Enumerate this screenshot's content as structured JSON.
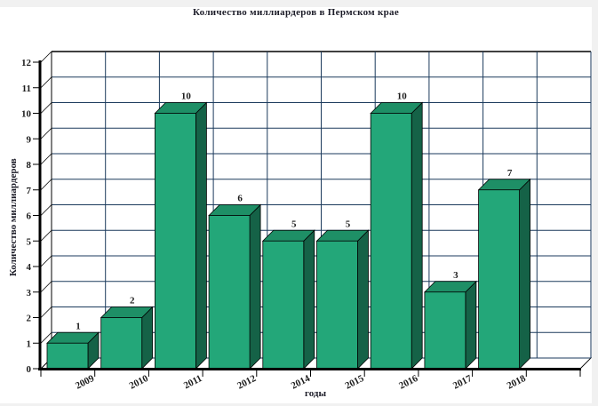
{
  "page": {
    "background_color": "#f1f1f1",
    "plot_background_color": "#ffffff"
  },
  "chart_data": {
    "type": "bar",
    "style": "3d-column",
    "title": "Количество миллиардеров  в  Пермском крае",
    "xlabel": "годы",
    "ylabel": "Количество миллиардеров",
    "categories": [
      "2009",
      "2010",
      "2011",
      "2012",
      "2014",
      "2015",
      "2016",
      "2017",
      "2018"
    ],
    "values": [
      1,
      2,
      10,
      6,
      5,
      5,
      10,
      3,
      7
    ],
    "ylim": [
      0,
      12
    ],
    "yticks": [
      0,
      1,
      2,
      3,
      4,
      5,
      6,
      7,
      8,
      9,
      10,
      11,
      12
    ],
    "grid": true,
    "legend": false,
    "data_labels": true,
    "colors": {
      "bar_front": "#23a779",
      "bar_top": "#1e8f66",
      "bar_side": "#156247",
      "grid": "#1b3a5c",
      "axis": "#000000",
      "label": "#1c1c1c"
    }
  }
}
